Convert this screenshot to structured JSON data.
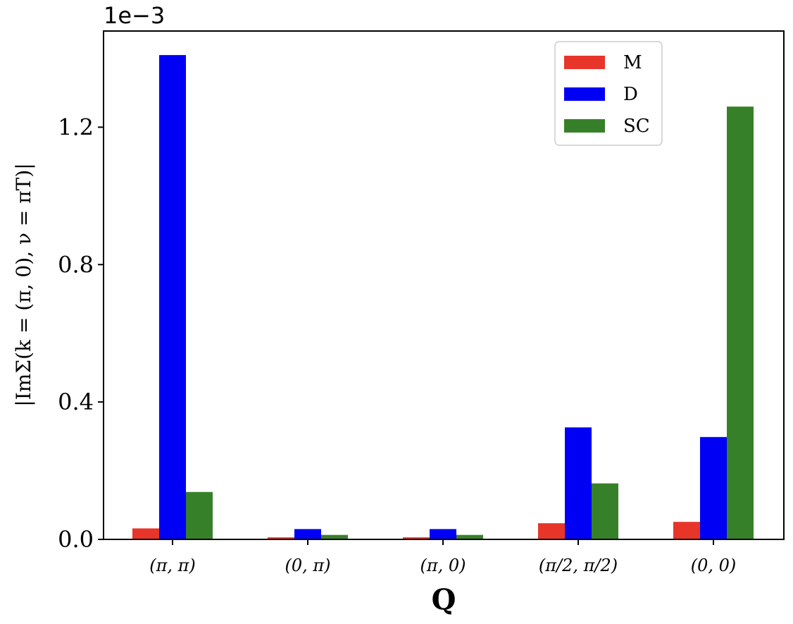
{
  "chart_data": {
    "type": "bar",
    "categories": [
      "(π, π)",
      "(0, π)",
      "(π, 0)",
      "(π/2, π/2)",
      "(0, 0)"
    ],
    "series": [
      {
        "name": "M",
        "color": "#e8352a",
        "values": [
          0.032,
          0.006,
          0.006,
          0.047,
          0.051
        ]
      },
      {
        "name": "D",
        "color": "#0000f5",
        "values": [
          1.41,
          0.03,
          0.03,
          0.326,
          0.298
        ]
      },
      {
        "name": "SC",
        "color": "#37802a",
        "values": [
          0.138,
          0.013,
          0.013,
          0.163,
          1.26
        ]
      }
    ],
    "title": "",
    "xlabel": "Q",
    "ylabel": "|ImΣ(k = (π, 0), ν = πT)|",
    "y_offset_label": "1e−3",
    "ylim": [
      0,
      1.48
    ],
    "yticks": [
      0.0,
      0.4,
      0.8,
      1.2
    ],
    "ytick_labels": [
      "0.0",
      "0.4",
      "0.8",
      "1.2"
    ],
    "grid": false,
    "legend_position": "top-right"
  }
}
